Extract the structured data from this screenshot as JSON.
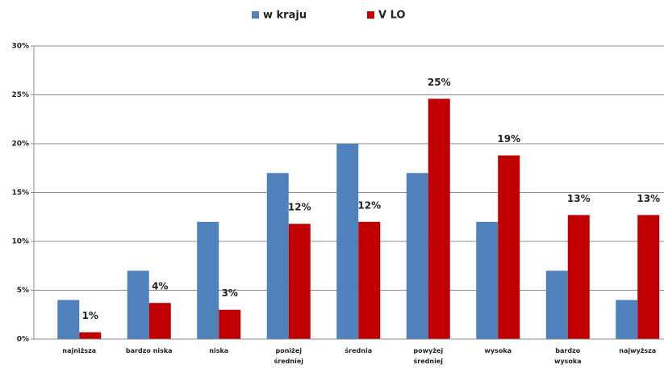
{
  "chart_data": {
    "type": "bar",
    "categories": [
      "najniższa",
      "bardzo niska",
      "niska",
      "poniżej\nśredniej",
      "średnia",
      "powyżej\nśredniej",
      "wysoka",
      "bardzo\nwysoka",
      "najwyższa"
    ],
    "series": [
      {
        "name": "w kraju",
        "color": "#4f81bd",
        "values": [
          4,
          7,
          12,
          17,
          20,
          17,
          12,
          7,
          4
        ]
      },
      {
        "name": "V LO",
        "color": "#c00000",
        "values": [
          0.7,
          3.7,
          3,
          11.8,
          12,
          24.6,
          18.8,
          12.7,
          12.7
        ],
        "value_labels": [
          "1%",
          "4%",
          "3%",
          "12%",
          "12%",
          "25%",
          "19%",
          "13%",
          "13%"
        ]
      }
    ],
    "ylim": [
      0,
      30
    ],
    "yticks": [
      {
        "value": 0,
        "label": "0%"
      },
      {
        "value": 5,
        "label": "5%"
      },
      {
        "value": 10,
        "label": "10%"
      },
      {
        "value": 15,
        "label": "15%"
      },
      {
        "value": 20,
        "label": "20%"
      },
      {
        "value": 25,
        "label": "25%"
      },
      {
        "value": 30,
        "label": "30%"
      }
    ],
    "grid": true,
    "legend": "top"
  }
}
